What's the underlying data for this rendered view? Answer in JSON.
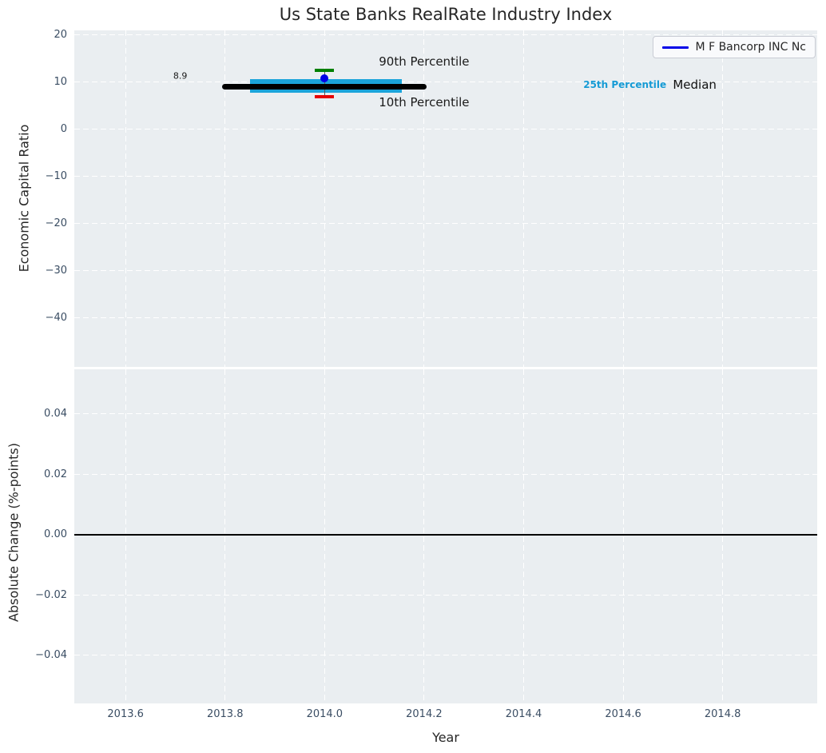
{
  "figure": {
    "title": "Us State Banks RealRate Industry Index",
    "legend": {
      "label": "M F Bancorp INC Nc",
      "line_color": "#0000e8"
    },
    "colors": {
      "figure_bg": "#ffffff",
      "axes_bg": "#eaeef1",
      "grid": "#ffffff",
      "tick_label": "#3a4d63",
      "text": "#262626",
      "median_line": "#000000",
      "iqr_band": "#1ba4da",
      "p90_cap": "#008000",
      "p10_cap": "#e60000",
      "company_dot": "#0000e8",
      "zero_line": "#000000"
    }
  },
  "chart_data": [
    {
      "type": "line",
      "title": "Us State Banks RealRate Industry Index",
      "ylabel": "Economic Capital Ratio",
      "xlim": [
        2013.497,
        2014.99
      ],
      "ylim": [
        -50.5,
        20.9
      ],
      "xticks": [
        2013.6,
        2013.8,
        2014.0,
        2014.2,
        2014.4,
        2014.6,
        2014.8
      ],
      "yticks": [
        20,
        10,
        0,
        -10,
        -20,
        -30,
        -40
      ],
      "ytick_labels": [
        "20",
        "10",
        "0",
        "−10",
        "−20",
        "−30",
        "−40"
      ],
      "grid": true,
      "legend_position": "upper right",
      "legend_entries": [
        "M F Bancorp INC Nc"
      ],
      "series": [
        {
          "name": "25th-75th Percentile band",
          "type": "band",
          "x": [
            2013.85,
            2014.155
          ],
          "y_low": 7.6,
          "y_high": 10.5,
          "color": "#1ba4da"
        },
        {
          "name": "percentile whisker",
          "type": "vline",
          "x": 2014.0,
          "y1": 6.8,
          "y2": 12.4,
          "color": "#555555"
        },
        {
          "name": "Median",
          "type": "line",
          "x": [
            2013.8,
            2014.2
          ],
          "y": [
            8.9,
            8.9
          ],
          "color": "#000000",
          "linewidth": 7
        },
        {
          "name": "90th Percentile",
          "type": "cap",
          "x": 2014.0,
          "y": 12.4,
          "color": "#008000"
        },
        {
          "name": "10th Percentile",
          "type": "cap",
          "x": 2014.0,
          "y": 6.8,
          "color": "#e60000"
        },
        {
          "name": "M F Bancorp INC Nc",
          "type": "scatter",
          "x": 2014.0,
          "y": 10.7,
          "color": "#0000e8"
        }
      ],
      "annotations": [
        {
          "text": "90th Percentile",
          "x": 2014.2,
          "y": 14.3,
          "color": "#1a1a1a",
          "size": 15,
          "weight": "normal",
          "align": "center"
        },
        {
          "text": "10th Percentile",
          "x": 2014.2,
          "y": 5.6,
          "color": "#1a1a1a",
          "size": 15,
          "weight": "normal",
          "align": "center"
        },
        {
          "text": "8.9",
          "x": 2013.71,
          "y": 11.2,
          "color": "#1a1a1a",
          "size": 11,
          "weight": "normal",
          "align": "center"
        },
        {
          "text": "25th Percentile",
          "x": 2014.52,
          "y": 9.4,
          "color": "#169bd5",
          "size": 12,
          "weight": "bold",
          "align": "left"
        },
        {
          "text": "Median",
          "x": 2014.7,
          "y": 9.4,
          "color": "#111111",
          "size": 15,
          "weight": "normal",
          "align": "left"
        }
      ]
    },
    {
      "type": "line",
      "ylabel": "Absolute Change (%-points)",
      "xlabel": "Year",
      "xlim": [
        2013.497,
        2014.99
      ],
      "ylim": [
        -0.0559,
        0.0548
      ],
      "xticks": [
        2013.6,
        2013.8,
        2014.0,
        2014.2,
        2014.4,
        2014.6,
        2014.8
      ],
      "xtick_labels": [
        "2013.6",
        "2013.8",
        "2014.0",
        "2014.2",
        "2014.4",
        "2014.6",
        "2014.8"
      ],
      "yticks": [
        0.04,
        0.02,
        0.0,
        -0.02,
        -0.04
      ],
      "ytick_labels": [
        "0.04",
        "0.02",
        "0.00",
        "−0.02",
        "−0.04"
      ],
      "grid": true,
      "zero_line": 0.0,
      "series": []
    }
  ]
}
